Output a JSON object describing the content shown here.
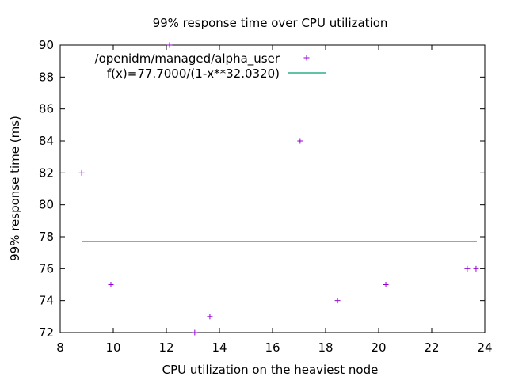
{
  "chart_data": {
    "type": "scatter",
    "title": "99% response time over CPU utilization",
    "xlabel": "CPU utilization on the heaviest node",
    "ylabel": "99% response time (ms)",
    "xlim": [
      8,
      24
    ],
    "ylim": [
      72,
      90
    ],
    "xticks": [
      8,
      10,
      12,
      14,
      16,
      18,
      20,
      22,
      24
    ],
    "yticks": [
      72,
      74,
      76,
      78,
      80,
      82,
      84,
      86,
      88,
      90
    ],
    "grid": false,
    "legend_position": "top-left",
    "series": [
      {
        "name": "/openidm/managed/alpha_user",
        "kind": "points",
        "color": "#9400d3",
        "x": [
          8.81,
          9.91,
          12.12,
          13.07,
          13.64,
          17.04,
          18.45,
          20.27,
          23.34,
          23.67
        ],
        "y": [
          82,
          75,
          90,
          72,
          73,
          84,
          74,
          75,
          76,
          76
        ]
      },
      {
        "name": "f(x)=77.7000/(1-x**32.0320)",
        "kind": "line",
        "color": "#009e73",
        "x": [
          8.81,
          23.7
        ],
        "y": [
          77.7,
          77.7
        ]
      }
    ]
  }
}
